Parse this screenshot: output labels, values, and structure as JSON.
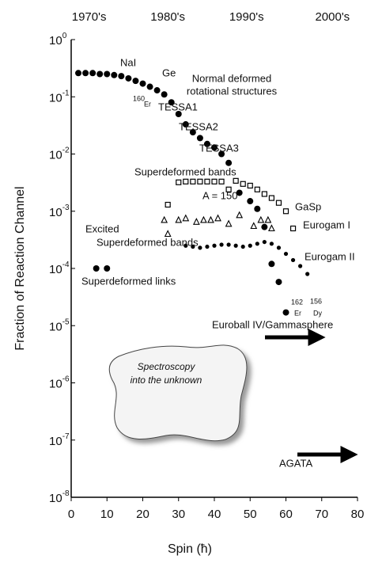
{
  "chart_data": {
    "type": "scatter",
    "xlabel": "Spin (ħ)",
    "ylabel": "Fraction of Reaction Channel",
    "xlim": [
      0,
      80
    ],
    "xticks": [
      0,
      10,
      20,
      30,
      40,
      50,
      60,
      70,
      80
    ],
    "ylim": [
      1e-08,
      1
    ],
    "log_y": true,
    "yticks": [
      {
        "value": 1,
        "label": "10",
        "exponent": "0"
      },
      {
        "value": 0.1,
        "label": "10",
        "exponent": "-1"
      },
      {
        "value": 0.01,
        "label": "10",
        "exponent": "-2"
      },
      {
        "value": 0.001,
        "label": "10",
        "exponent": "-3"
      },
      {
        "value": 0.0001,
        "label": "10",
        "exponent": "-4"
      },
      {
        "value": 1e-05,
        "label": "10",
        "exponent": "-5"
      },
      {
        "value": 1e-06,
        "label": "10",
        "exponent": "-6"
      },
      {
        "value": 1e-07,
        "label": "10",
        "exponent": "-7"
      },
      {
        "value": 1e-08,
        "label": "10",
        "exponent": "-8"
      }
    ],
    "x2ticks": [
      {
        "value": 5,
        "label": "1970's"
      },
      {
        "value": 27,
        "label": "1980's"
      },
      {
        "value": 49,
        "label": "1990's"
      },
      {
        "value": 73,
        "label": "2000's"
      }
    ],
    "series": [
      {
        "marker": "circle",
        "color": "#000000",
        "x": [
          2,
          4,
          6,
          8,
          10,
          12,
          14,
          16,
          18,
          20,
          22,
          24,
          26,
          28,
          30,
          32,
          34,
          36,
          38,
          40,
          42,
          44,
          7,
          10,
          47,
          50,
          52,
          54,
          56,
          58,
          60
        ],
        "values": [
          0.26,
          0.26,
          0.26,
          0.25,
          0.25,
          0.24,
          0.23,
          0.21,
          0.19,
          0.17,
          0.15,
          0.13,
          0.11,
          0.08,
          0.05,
          0.033,
          0.024,
          0.019,
          0.015,
          0.013,
          0.01,
          0.007,
          0.0001,
          0.0001,
          0.0021,
          0.0015,
          0.0011,
          0.00053,
          0.00012,
          5.8e-05,
          1.7e-05
        ]
      },
      {
        "marker": "dot",
        "color": "#000000",
        "x": [
          32,
          34,
          36,
          38,
          40,
          42,
          44,
          46,
          48,
          50,
          52,
          54,
          56,
          58,
          60,
          62,
          64,
          66
        ],
        "values": [
          0.00025,
          0.00024,
          0.00023,
          0.00024,
          0.00025,
          0.00026,
          0.00026,
          0.00025,
          0.00024,
          0.00025,
          0.00027,
          0.00029,
          0.00027,
          0.00023,
          0.00018,
          0.00014,
          0.00011,
          8e-05
        ]
      },
      {
        "marker": "square",
        "color": "#000000",
        "x": [
          27,
          30,
          32,
          34,
          36,
          38,
          40,
          42,
          44,
          46,
          48,
          50,
          52,
          54,
          56,
          58,
          60,
          62
        ],
        "values": [
          0.0013,
          0.0032,
          0.0033,
          0.0033,
          0.0033,
          0.0033,
          0.0033,
          0.0033,
          0.0024,
          0.0034,
          0.003,
          0.0028,
          0.0024,
          0.002,
          0.0017,
          0.0014,
          0.001,
          0.0005
        ]
      },
      {
        "marker": "triangle",
        "color": "#000000",
        "x": [
          26,
          27,
          30,
          32,
          35,
          37,
          39,
          41,
          44,
          47,
          51,
          53,
          55,
          56
        ],
        "values": [
          0.0007,
          0.0004,
          0.0007,
          0.00075,
          0.00065,
          0.0007,
          0.0007,
          0.00075,
          0.0006,
          0.00085,
          0.00055,
          0.0007,
          0.0007,
          0.0005
        ]
      }
    ],
    "annotations": [
      "NaI",
      "Ge",
      "160",
      "Er",
      "Normal deformed",
      "rotational structures",
      "TESSA1",
      "TESSA2",
      "TESSA3",
      "Superdeformed bands",
      "A = 150",
      "GaSp",
      "Excited",
      "Superdeformed bands",
      "Eurogam I",
      "Eurogam II",
      "Superdeformed links",
      "162",
      "Er",
      "156",
      "Dy",
      "Euroball IV/Gammasphere",
      "AGATA",
      "Spectroscopy",
      "into the unknown"
    ]
  }
}
